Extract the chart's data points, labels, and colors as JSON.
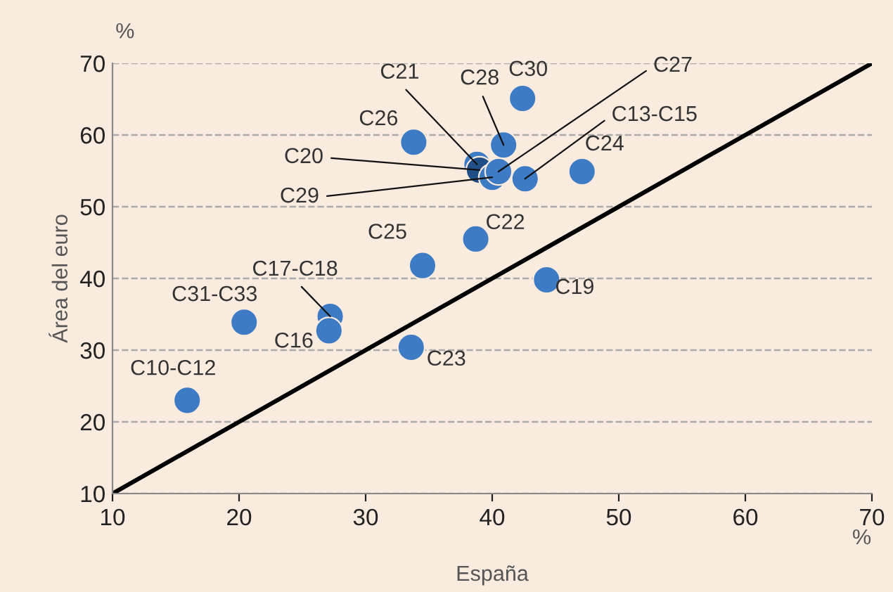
{
  "chart_data": {
    "type": "scatter",
    "xlabel": "España",
    "ylabel": "Área del euro",
    "x": [
      15.9,
      20.4,
      27.2,
      27.1,
      33.6,
      34.5,
      38.7,
      44.3,
      33.8,
      42.4,
      40.9,
      47.1,
      42.6,
      38.8,
      39.0,
      40.0,
      40.5
    ],
    "series": [
      {
        "color": "#3d7cc4",
        "marker": "circle",
        "values": [
          23.0,
          33.9,
          34.7,
          32.7,
          30.4,
          41.8,
          45.5,
          39.8,
          59.0,
          65.1,
          58.6,
          54.9,
          53.9,
          55.9,
          55.1,
          54.1,
          54.9
        ],
        "colors": [
          "#3d7cc4",
          "#3d7cc4",
          "#3d7cc4",
          "#3d7cc4",
          "#3d7cc4",
          "#3d7cc4",
          "#3d7cc4",
          "#3d7cc4",
          "#3d7cc4",
          "#3d7cc4",
          "#3d7cc4",
          "#3d7cc4",
          "#3d7cc4",
          "#3d7cc4",
          "#1f4f86",
          "#3d7cc4",
          "#3d7cc4"
        ]
      },
      {
        "type": "line",
        "color": "#000000",
        "x": [
          10,
          70
        ],
        "values": [
          10,
          70
        ]
      }
    ],
    "annotations": [
      {
        "text": "C10-C12",
        "x": 15.9,
        "y": 23.0
      },
      {
        "text": "C31-C33",
        "x": 20.4,
        "y": 33.9
      },
      {
        "text": "C17-C18",
        "x": 27.2,
        "y": 34.7
      },
      {
        "text": "C16",
        "x": 27.1,
        "y": 32.7
      },
      {
        "text": "C23",
        "x": 33.6,
        "y": 30.4
      },
      {
        "text": "C25",
        "x": 34.5,
        "y": 41.8
      },
      {
        "text": "C22",
        "x": 38.7,
        "y": 45.5
      },
      {
        "text": "C19",
        "x": 44.3,
        "y": 39.8
      },
      {
        "text": "C26",
        "x": 33.8,
        "y": 59.0
      },
      {
        "text": "C30",
        "x": 42.4,
        "y": 65.1
      },
      {
        "text": "C28",
        "x": 40.9,
        "y": 58.6
      },
      {
        "text": "C24",
        "x": 47.1,
        "y": 54.9
      },
      {
        "text": "C13-C15",
        "x": 42.6,
        "y": 53.9
      },
      {
        "text": "C21",
        "x": 38.8,
        "y": 55.9
      },
      {
        "text": "C20",
        "x": 39.0,
        "y": 55.1
      },
      {
        "text": "C29",
        "x": 40.0,
        "y": 54.1
      },
      {
        "text": "C27",
        "x": 40.5,
        "y": 54.9
      },
      "%",
      "%"
    ],
    "xlim": [
      10,
      70
    ],
    "ylim": [
      10,
      70
    ],
    "xticks": [
      10,
      20,
      30,
      40,
      50,
      60,
      70
    ],
    "yticks": [
      10,
      20,
      30,
      40,
      50,
      60,
      70
    ],
    "grid": "y"
  }
}
